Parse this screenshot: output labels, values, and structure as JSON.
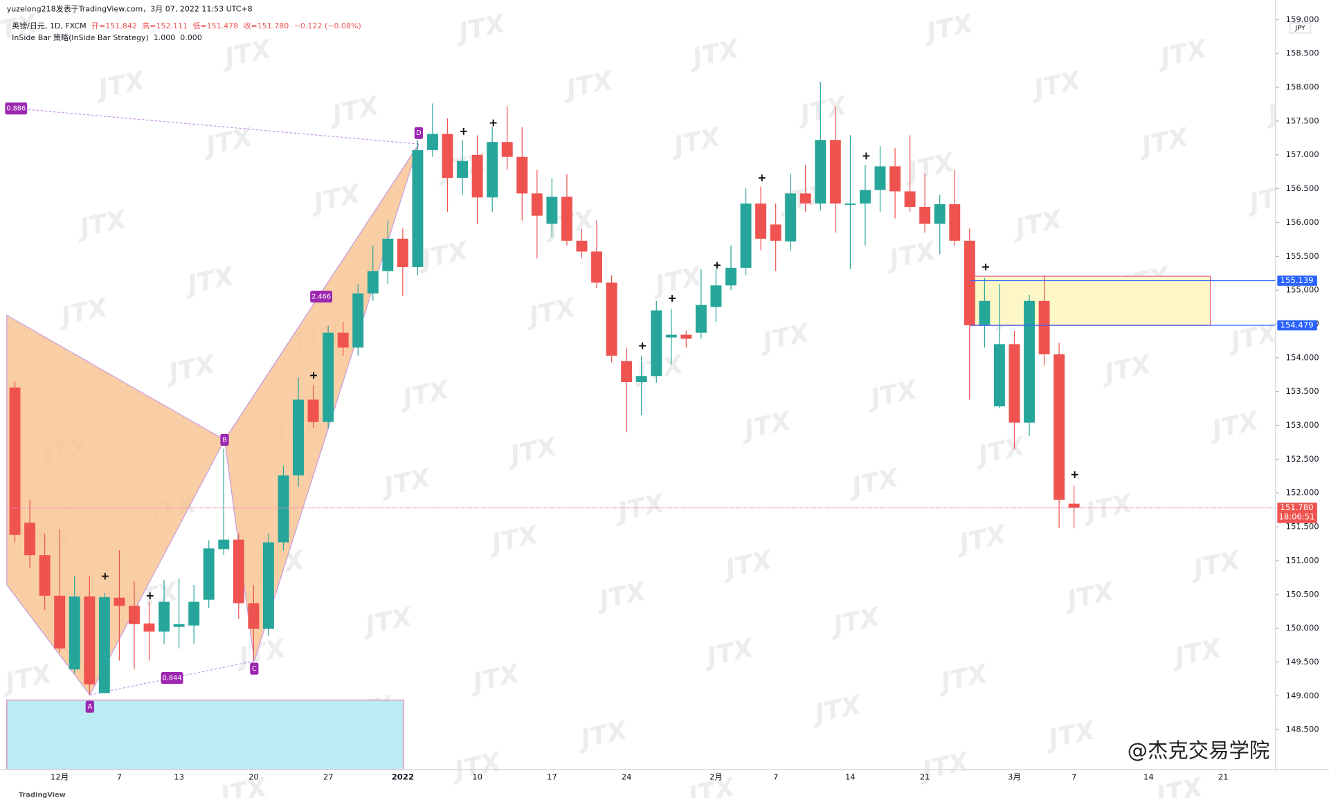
{
  "header": {
    "published": "yuzelong218发表于TradingView.com，3月 07, 2022 11:53 UTC+8",
    "symbol": "英镑/日元, 1D, FXCM",
    "ohlc": [
      "开=151.842",
      "高=152.111",
      "低=151.478",
      "收=151.780"
    ],
    "change": "−0.122 (−0.08%)",
    "indicator": "InSide Bar 策略(InSide Bar Strategy)  1.000  0.000"
  },
  "chart_data": {
    "type": "candlestick",
    "currency": "JPY",
    "categories": [
      null,
      null,
      null,
      "12月",
      null,
      null,
      null,
      "7",
      null,
      null,
      null,
      "13",
      null,
      null,
      null,
      null,
      "20",
      null,
      null,
      null,
      null,
      "27",
      null,
      null,
      null,
      null,
      "2022",
      null,
      null,
      null,
      null,
      "10",
      null,
      null,
      null,
      null,
      "17",
      null,
      null,
      null,
      null,
      "24",
      null,
      null,
      null,
      null,
      null,
      "2月",
      null,
      null,
      null,
      "7",
      null,
      null,
      null,
      null,
      "14",
      null,
      null,
      null,
      null,
      "21",
      null,
      null,
      null,
      null,
      null,
      "3月",
      null,
      null,
      null,
      "7",
      null,
      null,
      null,
      null,
      "14",
      null,
      null,
      null,
      null,
      "21"
    ],
    "open": [
      153.56,
      151.56,
      151.08,
      150.48,
      149.39,
      150.47,
      149.04,
      150.45,
      150.33,
      150.07,
      149.95,
      150.02,
      150.04,
      150.42,
      151.17,
      151.31,
      150.37,
      149.99,
      151.27,
      152.26,
      153.38,
      153.05,
      154.37,
      154.15,
      154.95,
      155.28,
      155.76,
      155.34,
      157.07,
      157.31,
      156.66,
      157.0,
      156.37,
      157.19,
      156.97,
      156.43,
      155.98,
      156.38,
      155.73,
      155.57,
      155.11,
      153.95,
      153.64,
      153.73,
      154.3,
      154.34,
      154.37,
      154.75,
      155.07,
      155.33,
      156.28,
      155.97,
      155.72,
      156.43,
      156.28,
      157.22,
      156.26,
      156.28,
      156.48,
      156.83,
      156.46,
      156.23,
      155.98,
      156.27,
      155.73,
      154.48,
      153.28,
      154.2,
      153.04,
      154.84,
      154.05,
      151.842,
      null,
      null,
      null,
      null,
      null,
      null,
      null,
      null,
      null,
      null
    ],
    "high": [
      153.65,
      151.9,
      151.4,
      151.46,
      150.77,
      150.77,
      150.52,
      151.15,
      150.69,
      150.39,
      150.71,
      150.73,
      150.64,
      151.3,
      152.65,
      151.4,
      150.64,
      151.4,
      152.4,
      153.71,
      153.59,
      154.47,
      154.53,
      155.09,
      155.66,
      156.03,
      155.91,
      157.22,
      157.76,
      157.54,
      157.22,
      157.29,
      157.41,
      157.72,
      157.41,
      156.78,
      156.66,
      156.72,
      155.91,
      156.03,
      155.22,
      154.15,
      154.03,
      154.84,
      154.72,
      154.4,
      155.31,
      155.31,
      155.66,
      156.51,
      156.53,
      156.28,
      156.72,
      156.85,
      158.08,
      157.72,
      157.29,
      156.85,
      157.13,
      157.1,
      157.29,
      156.72,
      156.41,
      156.78,
      155.91,
      155.18,
      155.09,
      154.4,
      154.93,
      155.22,
      154.22,
      152.111,
      null,
      null,
      null,
      null,
      null,
      null,
      null,
      null,
      null,
      null
    ],
    "low": [
      151.27,
      150.89,
      150.27,
      149.64,
      149.33,
      149.02,
      149.04,
      149.52,
      149.39,
      149.52,
      149.77,
      149.7,
      149.77,
      150.3,
      151.08,
      150.14,
      149.52,
      149.89,
      151.15,
      152.09,
      152.96,
      152.96,
      154.03,
      154.03,
      154.84,
      155.09,
      154.91,
      155.22,
      156.97,
      156.16,
      156.41,
      155.98,
      156.16,
      156.78,
      156.03,
      155.47,
      155.78,
      155.66,
      155.47,
      155.03,
      153.93,
      152.9,
      153.15,
      153.63,
      153.9,
      154.15,
      154.28,
      154.53,
      155.0,
      155.22,
      155.59,
      155.28,
      155.59,
      156.16,
      156.18,
      155.85,
      155.31,
      155.66,
      156.16,
      156.06,
      156.16,
      155.85,
      155.53,
      155.66,
      153.38,
      154.15,
      153.25,
      152.65,
      152.84,
      153.88,
      151.48,
      151.478,
      null,
      null,
      null,
      null,
      null,
      null,
      null,
      null,
      null,
      null
    ],
    "close": [
      151.38,
      151.08,
      150.48,
      149.7,
      150.47,
      149.17,
      150.46,
      150.33,
      150.06,
      149.95,
      150.39,
      150.06,
      150.39,
      151.18,
      151.31,
      150.37,
      149.99,
      151.27,
      152.26,
      153.38,
      153.05,
      154.37,
      154.15,
      154.95,
      155.28,
      155.76,
      155.34,
      157.07,
      157.31,
      156.66,
      156.91,
      156.37,
      157.19,
      156.97,
      156.43,
      156.1,
      156.38,
      155.73,
      155.57,
      155.11,
      154.03,
      153.64,
      153.73,
      154.7,
      154.34,
      154.28,
      154.78,
      155.07,
      155.33,
      156.28,
      155.76,
      155.73,
      156.43,
      156.28,
      157.22,
      156.28,
      156.28,
      156.48,
      156.83,
      156.46,
      156.23,
      155.98,
      156.27,
      155.73,
      154.48,
      154.84,
      154.2,
      153.04,
      154.84,
      154.05,
      151.9,
      151.78,
      null,
      null,
      null,
      null,
      null,
      null,
      null,
      null,
      null,
      null
    ],
    "ylim": [
      147.91,
      159.29
    ],
    "yticks": [
      {
        "value": 148.5,
        "label": "148.500"
      },
      {
        "value": 149,
        "label": "149.000"
      },
      {
        "value": 149.5,
        "label": "149.500"
      },
      {
        "value": 150,
        "label": "150.000"
      },
      {
        "value": 150.5,
        "label": "150.500"
      },
      {
        "value": 151,
        "label": "151.000"
      },
      {
        "value": 151.5,
        "label": "151.500"
      },
      {
        "value": 152,
        "label": "152.000"
      },
      {
        "value": 152.5,
        "label": "152.500"
      },
      {
        "value": 153,
        "label": "153.000"
      },
      {
        "value": 153.5,
        "label": "153.500"
      },
      {
        "value": 154,
        "label": "154.000"
      },
      {
        "value": 154.5,
        "label": "154.500"
      },
      {
        "value": 155,
        "label": "155.000"
      },
      {
        "value": 155.5,
        "label": "155.500"
      },
      {
        "value": 156,
        "label": "156.000"
      },
      {
        "value": 156.5,
        "label": "156.500"
      },
      {
        "value": 157,
        "label": "157.000"
      },
      {
        "value": 157.5,
        "label": "157.500"
      },
      {
        "value": 158,
        "label": "158.000"
      },
      {
        "value": 158.5,
        "label": "158.500"
      },
      {
        "value": 159,
        "label": "159.000"
      }
    ],
    "up_color": "#26a69a",
    "down_color": "#ef5350",
    "levels": [
      {
        "value": 155.139,
        "label": "155.139"
      },
      {
        "value": 154.479,
        "label": "154.479"
      }
    ],
    "level_color": "#2962ff",
    "last_price": {
      "value": 151.78,
      "label": "151.780"
    },
    "countdown": "18:06:51",
    "pattern_labels": [
      "A",
      "B",
      "C",
      "D"
    ],
    "ratios": [
      "0.886",
      "2.466",
      "0.844"
    ]
  },
  "watermark": "JTX",
  "brand": "@杰克交易学院",
  "logo": "TradingView"
}
